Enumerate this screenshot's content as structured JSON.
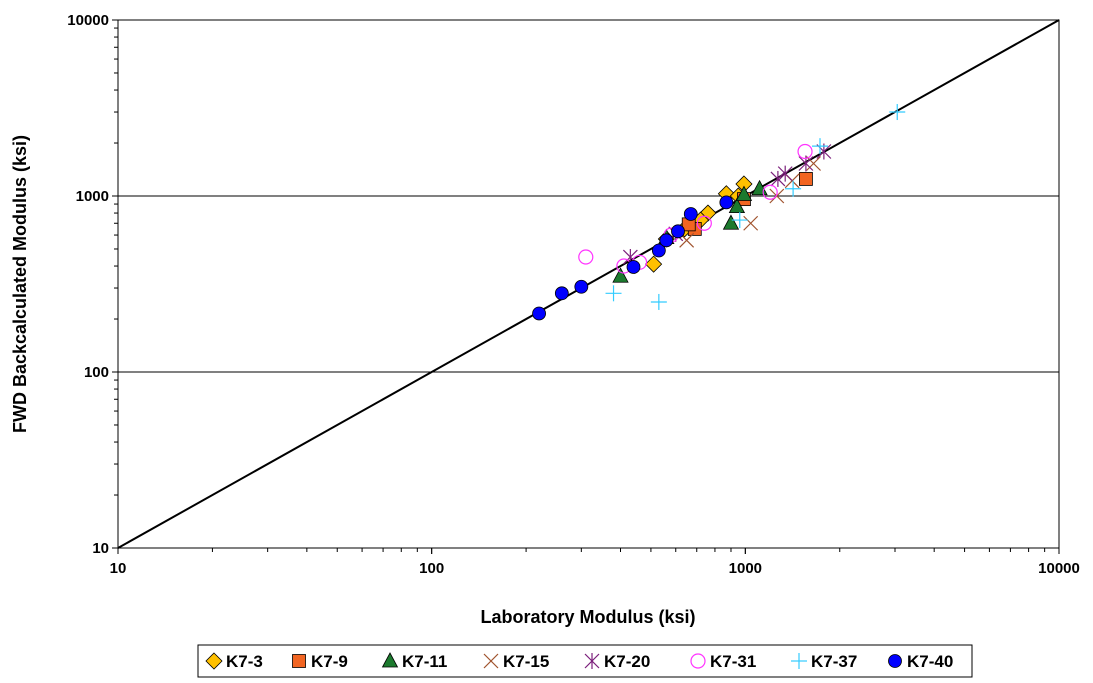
{
  "chart_data": {
    "type": "scatter",
    "title": "",
    "xlabel": "Laboratory Modulus (ksi)",
    "ylabel": "FWD Backcalculated Modulus (ksi)",
    "xscale": "log",
    "yscale": "log",
    "xlim": [
      10,
      10000
    ],
    "ylim": [
      10,
      10000
    ],
    "x_ticks": [
      "10",
      "100",
      "1000",
      "10000"
    ],
    "y_ticks": [
      "10",
      "100",
      "1000",
      "10000"
    ],
    "grid": "horizontal major gridlines",
    "legend_position": "bottom",
    "reference_line": {
      "name": "line of equality",
      "x": [
        10,
        10000
      ],
      "y": [
        10,
        10000
      ],
      "color": "#000000"
    },
    "series": [
      {
        "name": "K7-3",
        "marker": "diamond",
        "color": "#FFC000",
        "edge": "#000000",
        "points": [
          [
            870,
            1030
          ],
          [
            990,
            1170
          ],
          [
            760,
            800
          ],
          [
            720,
            730
          ],
          [
            640,
            650
          ],
          [
            510,
            410
          ],
          [
            560,
            570
          ],
          [
            950,
            1000
          ]
        ]
      },
      {
        "name": "K7-9",
        "marker": "square",
        "color": "#F26522",
        "edge": "#000000",
        "points": [
          [
            1560,
            1250
          ],
          [
            990,
            960
          ],
          [
            690,
            650
          ],
          [
            660,
            690
          ]
        ]
      },
      {
        "name": "K7-11",
        "marker": "triangle",
        "color": "#1C7A2E",
        "edge": "#000000",
        "points": [
          [
            400,
            350
          ],
          [
            560,
            580
          ],
          [
            900,
            700
          ],
          [
            940,
            870
          ],
          [
            1110,
            1100
          ],
          [
            990,
            1020
          ]
        ]
      },
      {
        "name": "K7-15",
        "marker": "x",
        "color": "#A0522D",
        "points": [
          [
            1040,
            700
          ],
          [
            650,
            560
          ],
          [
            1260,
            1000
          ],
          [
            1410,
            1220
          ],
          [
            1650,
            1530
          ]
        ]
      },
      {
        "name": "K7-20",
        "marker": "star",
        "color": "#7B1F7B",
        "points": [
          [
            1780,
            1790
          ],
          [
            1560,
            1530
          ],
          [
            1340,
            1340
          ],
          [
            1270,
            1250
          ],
          [
            430,
            450
          ],
          [
            600,
            610
          ]
        ]
      },
      {
        "name": "K7-31",
        "marker": "circle-open",
        "color": "#FF33FF",
        "points": [
          [
            310,
            450
          ],
          [
            1550,
            1790
          ],
          [
            1200,
            1050
          ],
          [
            410,
            400
          ],
          [
            580,
            600
          ],
          [
            740,
            700
          ],
          [
            460,
            420
          ]
        ]
      },
      {
        "name": "K7-37",
        "marker": "plus",
        "color": "#33CCFF",
        "points": [
          [
            3050,
            3000
          ],
          [
            1730,
            1920
          ],
          [
            1420,
            1100
          ],
          [
            960,
            730
          ],
          [
            530,
            250
          ],
          [
            380,
            280
          ]
        ]
      },
      {
        "name": "K7-40",
        "marker": "circle",
        "color": "#0000FF",
        "edge": "#000000",
        "points": [
          [
            220,
            215
          ],
          [
            260,
            280
          ],
          [
            300,
            305
          ],
          [
            440,
            395
          ],
          [
            530,
            490
          ],
          [
            560,
            560
          ],
          [
            610,
            630
          ],
          [
            670,
            790
          ],
          [
            870,
            920
          ]
        ]
      }
    ]
  }
}
